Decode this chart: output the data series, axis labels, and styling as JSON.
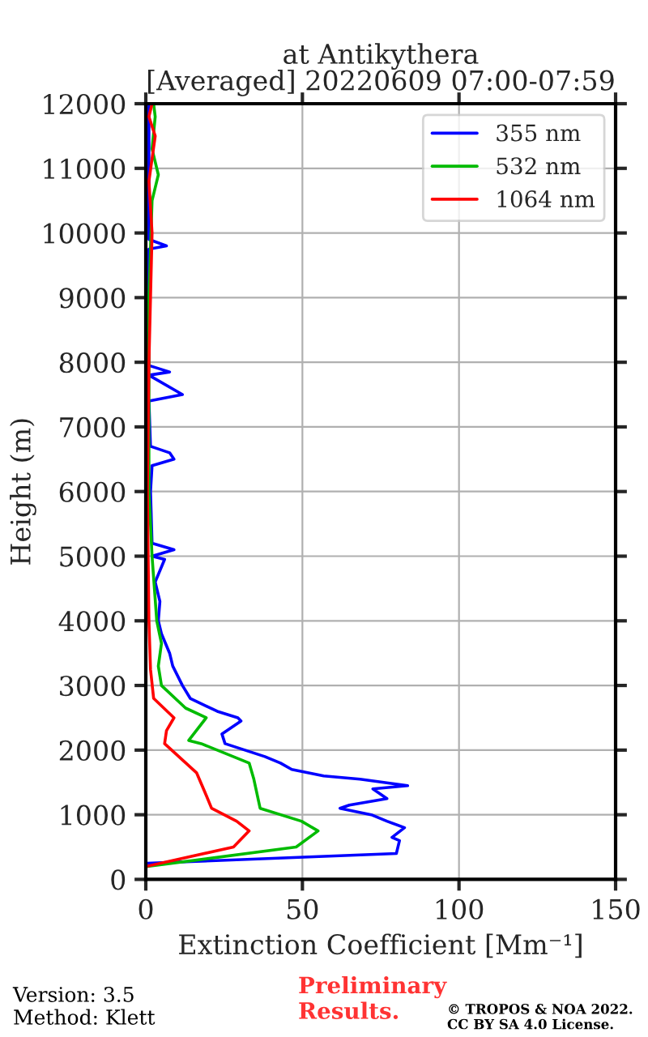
{
  "chart_data": {
    "type": "line",
    "title": "at Antikythera\n[Averaged] 20220609 07:00-07:59",
    "xlabel": "Extinction Coefficient [Mm⁻¹]",
    "ylabel": "Height (m)",
    "xlim": [
      0,
      150
    ],
    "xticks": [
      0,
      50,
      100,
      150
    ],
    "ylim": [
      0,
      12000
    ],
    "yticks": [
      0,
      1000,
      2000,
      3000,
      4000,
      5000,
      6000,
      7000,
      8000,
      9000,
      10000,
      11000,
      12000
    ],
    "grid": true,
    "legend": "top right",
    "series": [
      {
        "name": "355 nm",
        "color": "#0000ff",
        "x": [
          0.5,
          80,
          81,
          78.6,
          82.6,
          77,
          72,
          62,
          65,
          77,
          72.5,
          83.6,
          68.4,
          56.8,
          46.6,
          43,
          38,
          25.3,
          24.3,
          30.4,
          29.4,
          22.8,
          14.2,
          11.7,
          8.6,
          7.6,
          5,
          4,
          4.5,
          3,
          6,
          2,
          9,
          2,
          1.5,
          2,
          9,
          7.6,
          1.5,
          1,
          11.7,
          1,
          7.6,
          1,
          1,
          6.6,
          1,
          1,
          1
        ],
        "values": [
          250,
          400,
          600,
          650,
          800,
          900,
          1000,
          1100,
          1150,
          1250,
          1400,
          1450,
          1550,
          1600,
          1700,
          1800,
          1900,
          2100,
          2250,
          2450,
          2500,
          2600,
          2800,
          3000,
          3300,
          3500,
          3800,
          4000,
          4300,
          4600,
          4950,
          5000,
          5100,
          5200,
          6000,
          6400,
          6500,
          6600,
          6700,
          7400,
          7500,
          7800,
          7850,
          7950,
          9750,
          9800,
          9900,
          11000,
          12000
        ]
      },
      {
        "name": "532 nm",
        "color": "#00bb00",
        "x": [
          0.5,
          48,
          55,
          49.7,
          36.5,
          34.5,
          33,
          17.7,
          13.7,
          19.3,
          12.7,
          5,
          4,
          5,
          3.5,
          2,
          1,
          1,
          1,
          2,
          4,
          2,
          3,
          2.5
        ],
        "values": [
          200,
          500,
          750,
          900,
          1100,
          1550,
          1800,
          2100,
          2150,
          2500,
          2650,
          3000,
          3300,
          3650,
          4000,
          5000,
          6000,
          7500,
          9000,
          10500,
          10900,
          11300,
          11800,
          12000
        ]
      },
      {
        "name": "1064 nm",
        "color": "#ff0000",
        "x": [
          0,
          28,
          33,
          29,
          21,
          19.3,
          16.2,
          6,
          6.6,
          9,
          2.5,
          1.5,
          1,
          0.5,
          1,
          2,
          1,
          3,
          1,
          2
        ],
        "values": [
          200,
          500,
          750,
          900,
          1100,
          1300,
          1650,
          2100,
          2300,
          2500,
          2800,
          3250,
          4000,
          6000,
          8000,
          10000,
          10800,
          11500,
          11800,
          12000
        ]
      }
    ],
    "annotations": [
      "Version: 3.5\nMethod: Klett",
      "Preliminary\nResults.",
      "© TROPOS & NOA 2022.\nCC BY SA 4.0 License."
    ]
  }
}
